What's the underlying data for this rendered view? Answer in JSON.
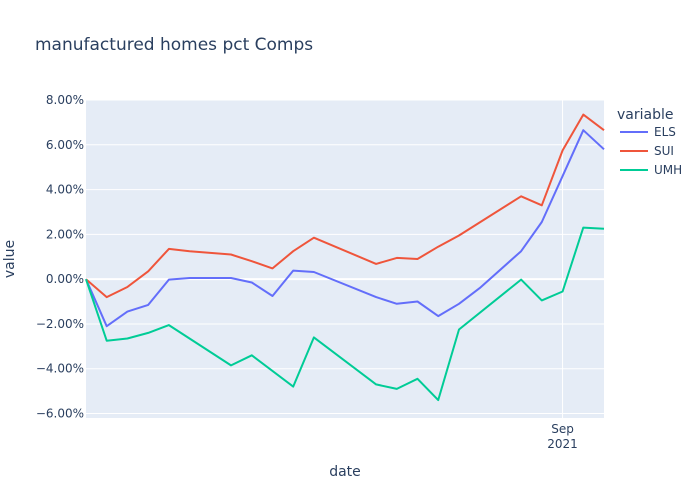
{
  "chart_data": {
    "type": "line",
    "title": "manufactured homes pct Comps",
    "xlabel": "date",
    "ylabel": "value",
    "ylim": [
      -6.2,
      8.0
    ],
    "y_ticks": [
      8,
      6,
      4,
      2,
      0,
      -2,
      -4,
      -6
    ],
    "y_tick_labels": [
      "8.00%",
      "6.00%",
      "4.00%",
      "2.00%",
      "0.00%",
      "−2.00%",
      "−4.00%",
      "−6.00%"
    ],
    "x_tick": {
      "index": 23,
      "label_line1": "Sep",
      "label_line2": "2021"
    },
    "x_count": 26,
    "legend_title": "variable",
    "series": [
      {
        "name": "ELS",
        "color": "#636efa",
        "values": [
          0.0,
          -2.1,
          -1.45,
          -1.15,
          -0.02,
          0.05,
          0.05,
          -0.15,
          -0.75,
          0.38,
          0.32,
          -0.8,
          -1.1,
          -1.0,
          -1.65,
          -1.1,
          -0.4,
          1.25,
          2.55,
          4.6,
          6.65,
          5.8
        ]
      },
      {
        "name": "SUI",
        "color": "#ef553b",
        "values": [
          0.0,
          -0.8,
          -0.35,
          0.35,
          1.35,
          1.25,
          1.1,
          0.8,
          0.48,
          1.25,
          1.85,
          0.68,
          0.95,
          0.9,
          1.45,
          1.95,
          3.7,
          3.3,
          5.75,
          7.35,
          6.65
        ]
      },
      {
        "name": "UMH",
        "color": "#00cc96",
        "values": [
          0.0,
          -2.75,
          -2.65,
          -2.4,
          -2.05,
          -3.85,
          -3.4,
          -4.8,
          -2.6,
          -4.7,
          -4.9,
          -4.45,
          -5.4,
          -2.25,
          -0.02,
          -0.95,
          -0.55,
          2.3,
          2.25
        ]
      }
    ],
    "series_x": {
      "ELS": [
        0,
        1,
        2,
        3,
        4,
        5,
        7,
        8,
        9,
        10,
        11,
        14,
        15,
        16,
        17,
        18,
        19,
        21,
        22,
        23,
        24,
        25
      ],
      "SUI": [
        0,
        1,
        2,
        3,
        4,
        5,
        7,
        8,
        9,
        10,
        11,
        14,
        15,
        16,
        17,
        18,
        21,
        22,
        23,
        24,
        25
      ],
      "UMH": [
        0,
        1,
        2,
        3,
        4,
        7,
        8,
        10,
        11,
        14,
        15,
        16,
        17,
        18,
        21,
        22,
        23,
        24,
        25
      ]
    }
  }
}
